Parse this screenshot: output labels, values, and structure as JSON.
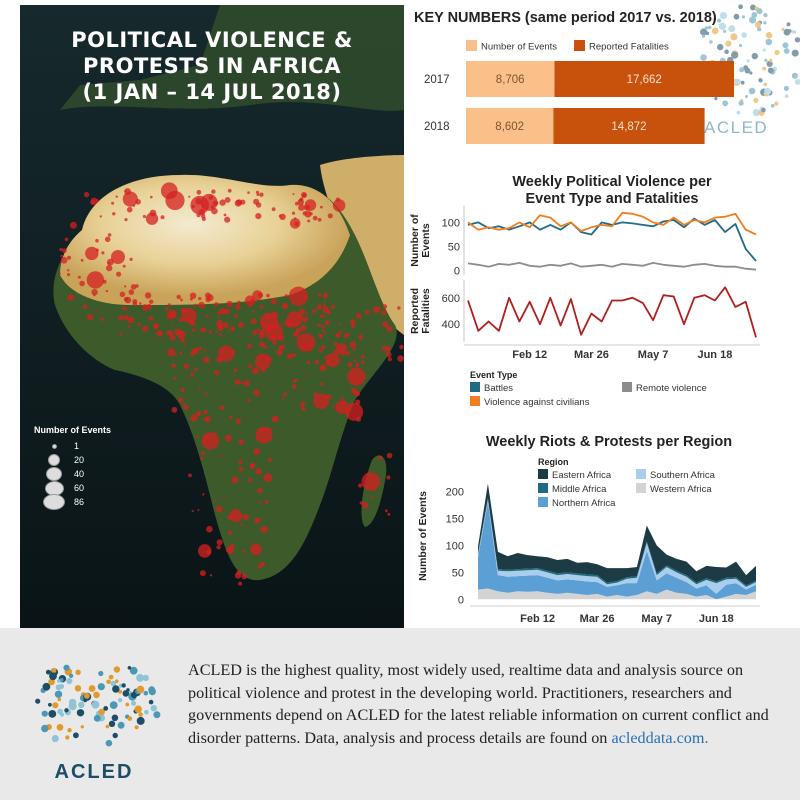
{
  "map": {
    "title_lines": [
      "POLITICAL VIOLENCE &",
      "PROTESTS IN AFRICA",
      "(1 JAN – 14 JUL 2018)"
    ],
    "legend_title": "Number of Events",
    "legend_items": [
      "1",
      "20",
      "40",
      "60",
      "86"
    ],
    "event_color": "#d42020"
  },
  "key_numbers": {
    "title": "KEY NUMBERS (same period 2017 vs. 2018)",
    "legend": [
      "Number of Events",
      "Reported Fatalities"
    ],
    "colors": [
      "#fbc08a",
      "#c8510b"
    ],
    "rows": [
      {
        "year": "2017",
        "events": 8706,
        "events_label": "8,706",
        "fatalities": 17662,
        "fatalities_label": "17,662"
      },
      {
        "year": "2018",
        "events": 8602,
        "events_label": "8,602",
        "fatalities": 14872,
        "fatalities_label": "14,872"
      }
    ]
  },
  "brand": {
    "name": "ACLED",
    "dot_colors": [
      "#1d4e66",
      "#e29a2e",
      "#4c98b4",
      "#8ec4d6"
    ]
  },
  "chart_data": [
    {
      "type": "line",
      "title": "Weekly Political Violence per Event Type and Fatalities",
      "title_lines": [
        "Weekly Political Violence per",
        "Event Type and Fatalities"
      ],
      "x_tick_labels": [
        "Feb 12",
        "Mar 26",
        "May 7",
        "Jun 18"
      ],
      "x_tick_weeks": [
        6,
        12,
        18,
        24
      ],
      "legend_title": "Event Type",
      "panels": [
        {
          "ylabel_lines": [
            "Number of",
            "Events"
          ],
          "y_ticks": [
            0,
            50,
            100
          ],
          "ylim": [
            -5,
            130
          ],
          "series": [
            {
              "name": "Battles",
              "color": "#1f6b86",
              "values": [
                95,
                100,
                88,
                92,
                85,
                92,
                100,
                85,
                95,
                85,
                100,
                80,
                75,
                100,
                95,
                100,
                98,
                95,
                92,
                102,
                105,
                90,
                108,
                95,
                105,
                80,
                97,
                45,
                20
              ]
            },
            {
              "name": "Remote violence",
              "color": "#8c8c8c",
              "values": [
                15,
                12,
                8,
                14,
                12,
                16,
                10,
                8,
                12,
                10,
                15,
                8,
                10,
                12,
                8,
                14,
                12,
                10,
                16,
                12,
                10,
                8,
                12,
                14,
                10,
                8,
                8,
                4,
                2
              ]
            },
            {
              "name": "Violence against civilians",
              "color": "#f07e1f",
              "values": [
                100,
                85,
                90,
                85,
                88,
                100,
                90,
                115,
                110,
                92,
                100,
                82,
                90,
                95,
                92,
                120,
                118,
                112,
                100,
                95,
                110,
                95,
                105,
                100,
                110,
                112,
                118,
                85,
                75
              ]
            }
          ]
        },
        {
          "ylabel_lines": [
            "Reported",
            "Fatalities"
          ],
          "y_ticks": [
            400,
            600
          ],
          "ylim": [
            280,
            720
          ],
          "series": [
            {
              "name": "Reported Fatalities",
              "color": "#b01e1e",
              "values": [
                580,
                350,
                420,
                350,
                600,
                420,
                570,
                400,
                600,
                390,
                590,
                320,
                480,
                420,
                580,
                580,
                600,
                560,
                430,
                620,
                610,
                400,
                600,
                620,
                580,
                680,
                530,
                570,
                300
              ]
            }
          ]
        }
      ]
    },
    {
      "type": "area",
      "title": "Weekly Riots & Protests per Region",
      "ylabel": "Number of Events",
      "y_ticks": [
        0,
        50,
        100,
        150,
        200
      ],
      "ylim": [
        -5,
        240
      ],
      "x_tick_labels": [
        "Feb 12",
        "Mar 26",
        "May 7",
        "Jun 18"
      ],
      "x_tick_weeks": [
        6,
        12,
        18,
        24
      ],
      "legend_title": "Region",
      "series": [
        {
          "name": "Western Africa",
          "color": "#d3d3d3",
          "values": [
            18,
            20,
            15,
            12,
            15,
            14,
            15,
            12,
            10,
            12,
            10,
            8,
            10,
            5,
            8,
            5,
            8,
            15,
            10,
            18,
            12,
            10,
            5,
            8,
            0,
            5,
            10,
            8,
            15
          ]
        },
        {
          "name": "Northern Africa",
          "color": "#5b9fd4",
          "values": [
            60,
            160,
            30,
            30,
            28,
            30,
            30,
            28,
            25,
            25,
            25,
            25,
            22,
            18,
            18,
            25,
            22,
            75,
            25,
            30,
            28,
            22,
            15,
            18,
            10,
            22,
            20,
            10,
            12
          ]
        },
        {
          "name": "Southern Africa",
          "color": "#a9cdea",
          "values": [
            5,
            5,
            8,
            10,
            10,
            10,
            10,
            10,
            10,
            10,
            10,
            10,
            10,
            5,
            5,
            8,
            10,
            15,
            10,
            12,
            10,
            10,
            8,
            10,
            20,
            10,
            8,
            5,
            5
          ]
        },
        {
          "name": "Middle Africa",
          "color": "#1e6a80",
          "values": [
            3,
            3,
            3,
            3,
            3,
            3,
            3,
            3,
            3,
            3,
            3,
            3,
            3,
            3,
            3,
            3,
            3,
            3,
            3,
            3,
            3,
            3,
            3,
            3,
            3,
            3,
            3,
            3,
            3
          ]
        },
        {
          "name": "Eastern Africa",
          "color": "#1c3b45",
          "values": [
            12,
            27,
            32,
            25,
            30,
            25,
            22,
            25,
            25,
            25,
            20,
            23,
            20,
            27,
            24,
            17,
            17,
            29,
            52,
            20,
            22,
            25,
            21,
            23,
            27,
            19,
            29,
            19,
            27
          ]
        }
      ]
    }
  ],
  "footer": {
    "text": "ACLED is the highest quality, most widely used, realtime data and analysis source on political violence and protest in the developing world. Practitioners, researchers and governments depend on ACLED for the latest reliable information on current conflict and disorder patterns. Data, analysis and process details are found on",
    "link_text": "acleddata.com."
  }
}
